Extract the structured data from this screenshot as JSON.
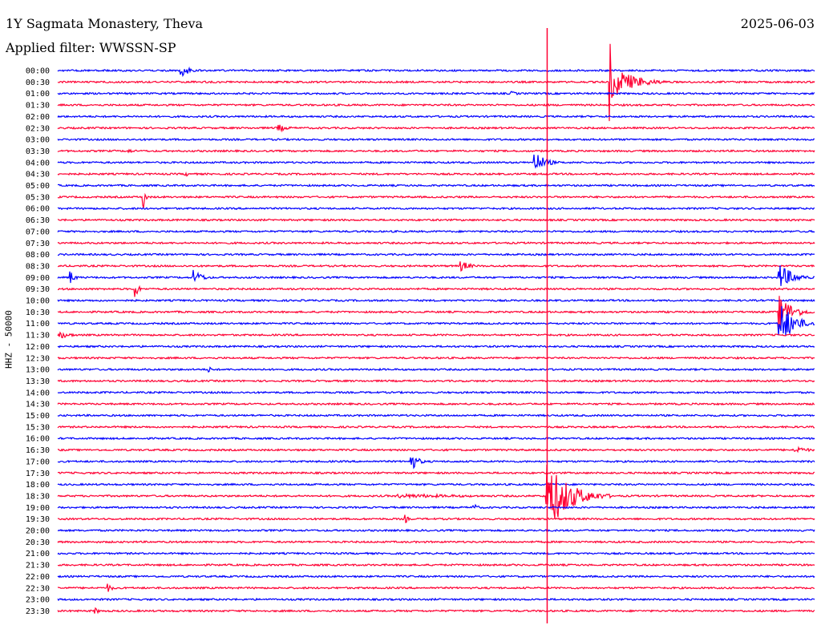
{
  "header": {
    "station": "1Y Sagmata Monastery, Theva",
    "date": "2025-06-03",
    "filter": "Applied filter: WWSSN-SP"
  },
  "channel_label": "HHZ - 50000",
  "colors": {
    "odd": "#ff0033",
    "even": "#0000ff",
    "background": "#ffffff"
  },
  "chart_data": {
    "type": "line",
    "title": "1Y Sagmata Monastery, Theva",
    "ylabel": "HHZ - 50000",
    "y_tick_labels": [
      "00:00",
      "00:30",
      "01:00",
      "01:30",
      "02:00",
      "02:30",
      "03:00",
      "03:30",
      "04:00",
      "04:30",
      "05:00",
      "05:30",
      "06:00",
      "06:30",
      "07:00",
      "07:30",
      "08:00",
      "08:30",
      "09:00",
      "09:30",
      "10:00",
      "10:30",
      "11:00",
      "11:30",
      "12:00",
      "12:30",
      "13:00",
      "13:30",
      "14:00",
      "14:30",
      "15:00",
      "15:30",
      "16:00",
      "16:30",
      "17:00",
      "17:30",
      "18:00",
      "18:30",
      "19:00",
      "19:30",
      "20:00",
      "20:30",
      "21:00",
      "21:30",
      "22:00",
      "22:30",
      "23:00",
      "23:30"
    ],
    "line_minutes": 30,
    "events": [
      {
        "row": 0,
        "minute": 4.9,
        "amplitude": 1.2,
        "duration": 0.8
      },
      {
        "row": 1,
        "minute": 21.9,
        "amplitude": 2.5,
        "duration": 2.5
      },
      {
        "row": 1,
        "minute": 21.9,
        "amplitude": 5.5,
        "duration": 0.3
      },
      {
        "row": 2,
        "minute": 18.0,
        "amplitude": 0.3,
        "duration": 1.0
      },
      {
        "row": 5,
        "minute": 8.7,
        "amplitude": 0.6,
        "duration": 1.2
      },
      {
        "row": 7,
        "minute": 2.8,
        "amplitude": 0.5,
        "duration": 0.4
      },
      {
        "row": 8,
        "minute": 18.9,
        "amplitude": 1.6,
        "duration": 1.2
      },
      {
        "row": 9,
        "minute": 5.1,
        "amplitude": 0.3,
        "duration": 1.0
      },
      {
        "row": 11,
        "minute": 3.4,
        "amplitude": 2.0,
        "duration": 0.2
      },
      {
        "row": 17,
        "minute": 16.0,
        "amplitude": 0.8,
        "duration": 1.0
      },
      {
        "row": 18,
        "minute": 0.5,
        "amplitude": 1.0,
        "duration": 0.5
      },
      {
        "row": 18,
        "minute": 5.4,
        "amplitude": 1.1,
        "duration": 1.0
      },
      {
        "row": 18,
        "minute": 28.6,
        "amplitude": 2.0,
        "duration": 1.5
      },
      {
        "row": 19,
        "minute": 3.1,
        "amplitude": 1.5,
        "duration": 0.3
      },
      {
        "row": 21,
        "minute": 28.6,
        "amplitude": 2.5,
        "duration": 1.5
      },
      {
        "row": 22,
        "minute": 28.6,
        "amplitude": 3.5,
        "duration": 1.5
      },
      {
        "row": 23,
        "minute": 0.0,
        "amplitude": 0.6,
        "duration": 1.5
      },
      {
        "row": 26,
        "minute": 6.0,
        "amplitude": 0.4,
        "duration": 0.6
      },
      {
        "row": 33,
        "minute": 29.2,
        "amplitude": 0.6,
        "duration": 1.5
      },
      {
        "row": 34,
        "minute": 14.0,
        "amplitude": 1.4,
        "duration": 0.8
      },
      {
        "row": 37,
        "minute": 13.5,
        "amplitude": 0.3,
        "duration": 12.0
      },
      {
        "row": 37,
        "minute": 19.4,
        "amplitude": 5.0,
        "duration": 2.5
      },
      {
        "row": 38,
        "minute": 16.5,
        "amplitude": 0.5,
        "duration": 0.6
      },
      {
        "row": 39,
        "minute": 13.8,
        "amplitude": 0.6,
        "duration": 0.3
      },
      {
        "row": 45,
        "minute": 2.0,
        "amplitude": 0.6,
        "duration": 0.6
      },
      {
        "row": 47,
        "minute": 1.5,
        "amplitude": 0.5,
        "duration": 0.4
      }
    ]
  }
}
